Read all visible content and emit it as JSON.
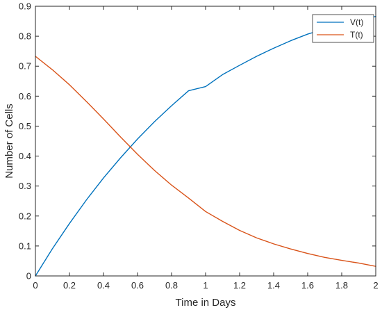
{
  "chart_data": {
    "type": "line",
    "xlabel": "Time in Days",
    "ylabel": "Number of Cells",
    "xlim": [
      0,
      2
    ],
    "ylim": [
      0,
      0.9
    ],
    "xticks": [
      0,
      0.2,
      0.4,
      0.6,
      0.8,
      1,
      1.2,
      1.4,
      1.6,
      1.8,
      2
    ],
    "xtick_labels": [
      "0",
      "0.2",
      "0.4",
      "0.6",
      "0.8",
      "1",
      "1.2",
      "1.4",
      "1.6",
      "1.8",
      "2"
    ],
    "yticks": [
      0,
      0.1,
      0.2,
      0.3,
      0.4,
      0.5,
      0.6,
      0.7,
      0.8,
      0.9
    ],
    "ytick_labels": [
      "0",
      "0.1",
      "0.2",
      "0.3",
      "0.4",
      "0.5",
      "0.6",
      "0.7",
      "0.8",
      "0.9"
    ],
    "grid": false,
    "legend_position": "top-right",
    "x": [
      0,
      0.1,
      0.2,
      0.3,
      0.4,
      0.5,
      0.6,
      0.7,
      0.8,
      0.9,
      1,
      1.1,
      1.2,
      1.3,
      1.4,
      1.5,
      1.6,
      1.7,
      1.8,
      1.9,
      2
    ],
    "series": [
      {
        "name": "V(t)",
        "color": "#0072BD",
        "values": [
          0,
          0.091,
          0.175,
          0.254,
          0.327,
          0.394,
          0.457,
          0.515,
          0.568,
          0.618,
          0.632,
          0.672,
          0.703,
          0.733,
          0.76,
          0.785,
          0.807,
          0.824,
          0.841,
          0.855,
          0.866
        ]
      },
      {
        "name": "T(t)",
        "color": "#D95319",
        "values": [
          0.733,
          0.688,
          0.638,
          0.582,
          0.524,
          0.464,
          0.406,
          0.352,
          0.303,
          0.26,
          0.215,
          0.182,
          0.152,
          0.127,
          0.107,
          0.09,
          0.075,
          0.062,
          0.052,
          0.043,
          0.032
        ]
      }
    ]
  }
}
